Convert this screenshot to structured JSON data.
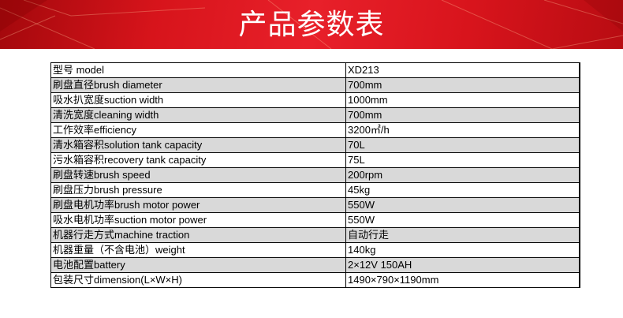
{
  "header": {
    "title": "产品参数表",
    "accent_color": "#e01c24"
  },
  "spec_table": {
    "rows": [
      {
        "label": "型号 model",
        "value": "XD213"
      },
      {
        "label": "刷盘直径brush diameter",
        "value": "700mm"
      },
      {
        "label": "吸水扒宽度suction width",
        "value": "1000mm"
      },
      {
        "label": "清洗宽度cleaning width",
        "value": "700mm"
      },
      {
        "label": "工作效率efficiency",
        "value": "3200㎡/h"
      },
      {
        "label": "清水箱容积solution tank capacity",
        "value": "70L"
      },
      {
        "label": "污水箱容积recovery tank capacity",
        "value": "75L"
      },
      {
        "label": "刷盘转速brush speed",
        "value": "200rpm"
      },
      {
        "label": "刷盘压力brush pressure",
        "value": "45kg"
      },
      {
        "label": "刷盘电机功率brush motor power",
        "value": "550W"
      },
      {
        "label": "吸水电机功率suction motor power",
        "value": "550W"
      },
      {
        "label": "机器行走方式machine traction",
        "value": "自动行走"
      },
      {
        "label": "机器重量（不含电池）weight",
        "value": "140kg"
      },
      {
        "label": "电池配置battery",
        "value": "2×12V 150AH"
      },
      {
        "label": "包装尺寸dimension(L×W×H)",
        "value": "1490×790×1190mm"
      }
    ]
  }
}
